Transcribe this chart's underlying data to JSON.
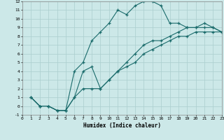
{
  "xlabel": "Humidex (Indice chaleur)",
  "background_color": "#cce8e8",
  "grid_color": "#aacece",
  "line_color": "#1a6b6b",
  "xlim": [
    0,
    23
  ],
  "ylim": [
    -1,
    12
  ],
  "xticks": [
    0,
    1,
    2,
    3,
    4,
    5,
    6,
    7,
    8,
    9,
    10,
    11,
    12,
    13,
    14,
    15,
    16,
    17,
    18,
    19,
    20,
    21,
    22,
    23
  ],
  "yticks": [
    -1,
    0,
    1,
    2,
    3,
    4,
    5,
    6,
    7,
    8,
    9,
    10,
    11,
    12
  ],
  "line1": {
    "x": [
      1,
      2,
      3,
      4,
      5,
      6,
      7,
      8,
      9,
      10,
      11,
      12,
      13,
      14,
      15,
      16,
      17,
      18,
      19,
      20,
      21,
      22,
      23
    ],
    "y": [
      1,
      0,
      0,
      -0.5,
      -0.5,
      4,
      5,
      7.5,
      8.5,
      9.5,
      11,
      10.5,
      11.5,
      12,
      12,
      11.5,
      9.5,
      9.5,
      9,
      9,
      9.5,
      9,
      8.5
    ]
  },
  "line2": {
    "x": [
      1,
      2,
      3,
      4,
      5,
      6,
      7,
      8,
      9,
      10,
      11,
      12,
      13,
      14,
      15,
      16,
      17,
      18,
      19,
      20,
      21,
      22,
      23
    ],
    "y": [
      1,
      0,
      0,
      -0.5,
      -0.5,
      1,
      4,
      4.5,
      2,
      3,
      4,
      5,
      6,
      7,
      7.5,
      7.5,
      8,
      8.5,
      9,
      9,
      9,
      9,
      8.5
    ]
  },
  "line3": {
    "x": [
      1,
      2,
      3,
      4,
      5,
      6,
      7,
      8,
      9,
      10,
      11,
      12,
      13,
      14,
      15,
      16,
      17,
      18,
      19,
      20,
      21,
      22,
      23
    ],
    "y": [
      1,
      0,
      0,
      -0.5,
      -0.5,
      1,
      2,
      2,
      2,
      3,
      4,
      4.5,
      5,
      6,
      6.5,
      7,
      7.5,
      8,
      8,
      8.5,
      8.5,
      8.5,
      8.5
    ]
  }
}
